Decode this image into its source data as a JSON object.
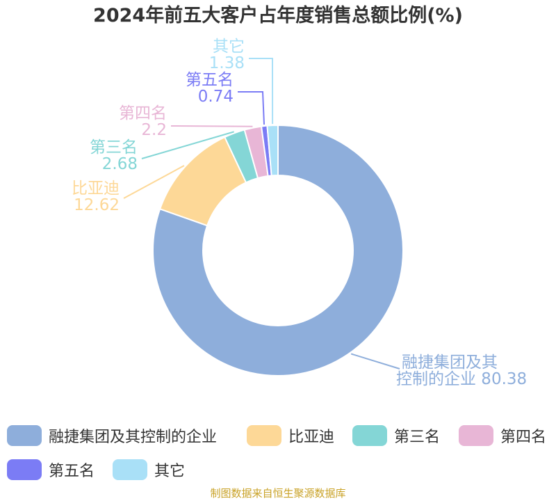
{
  "title": "2024年前五大客户占年度销售总额比例(%)",
  "source": "制图数据来自恒生聚源数据库",
  "chart_data": {
    "type": "pie",
    "subtype": "donut",
    "title": "2024年前五大客户占年度销售总额比例(%)",
    "legend_position": "bottom",
    "categories": [
      "融捷集团及其控制的企业",
      "比亚迪",
      "第三名",
      "第四名",
      "第五名",
      "其它"
    ],
    "values": [
      80.38,
      12.62,
      2.68,
      2.2,
      0.74,
      1.38
    ],
    "value_labels": [
      "80.38",
      "12.62",
      "2.68",
      "2.2",
      "0.74",
      "1.38"
    ],
    "colors": [
      "#8eaedb",
      "#fdd897",
      "#84d6d6",
      "#e8b6d6",
      "#7b7cf5",
      "#a9e0f7"
    ],
    "label_colors": [
      "#8eaedb",
      "#fdd897",
      "#84d6d6",
      "#e8b6d6",
      "#7b7cf5",
      "#a9e0f7"
    ],
    "label_lines": [
      [
        "融捷集团及其",
        "控制的企业 80.38"
      ],
      [
        "比亚迪",
        "12.62"
      ],
      [
        "第三名",
        "2.68"
      ],
      [
        "第四名",
        "2.2"
      ],
      [
        "第五名",
        "0.74"
      ],
      [
        "其它",
        "1.38"
      ]
    ]
  }
}
